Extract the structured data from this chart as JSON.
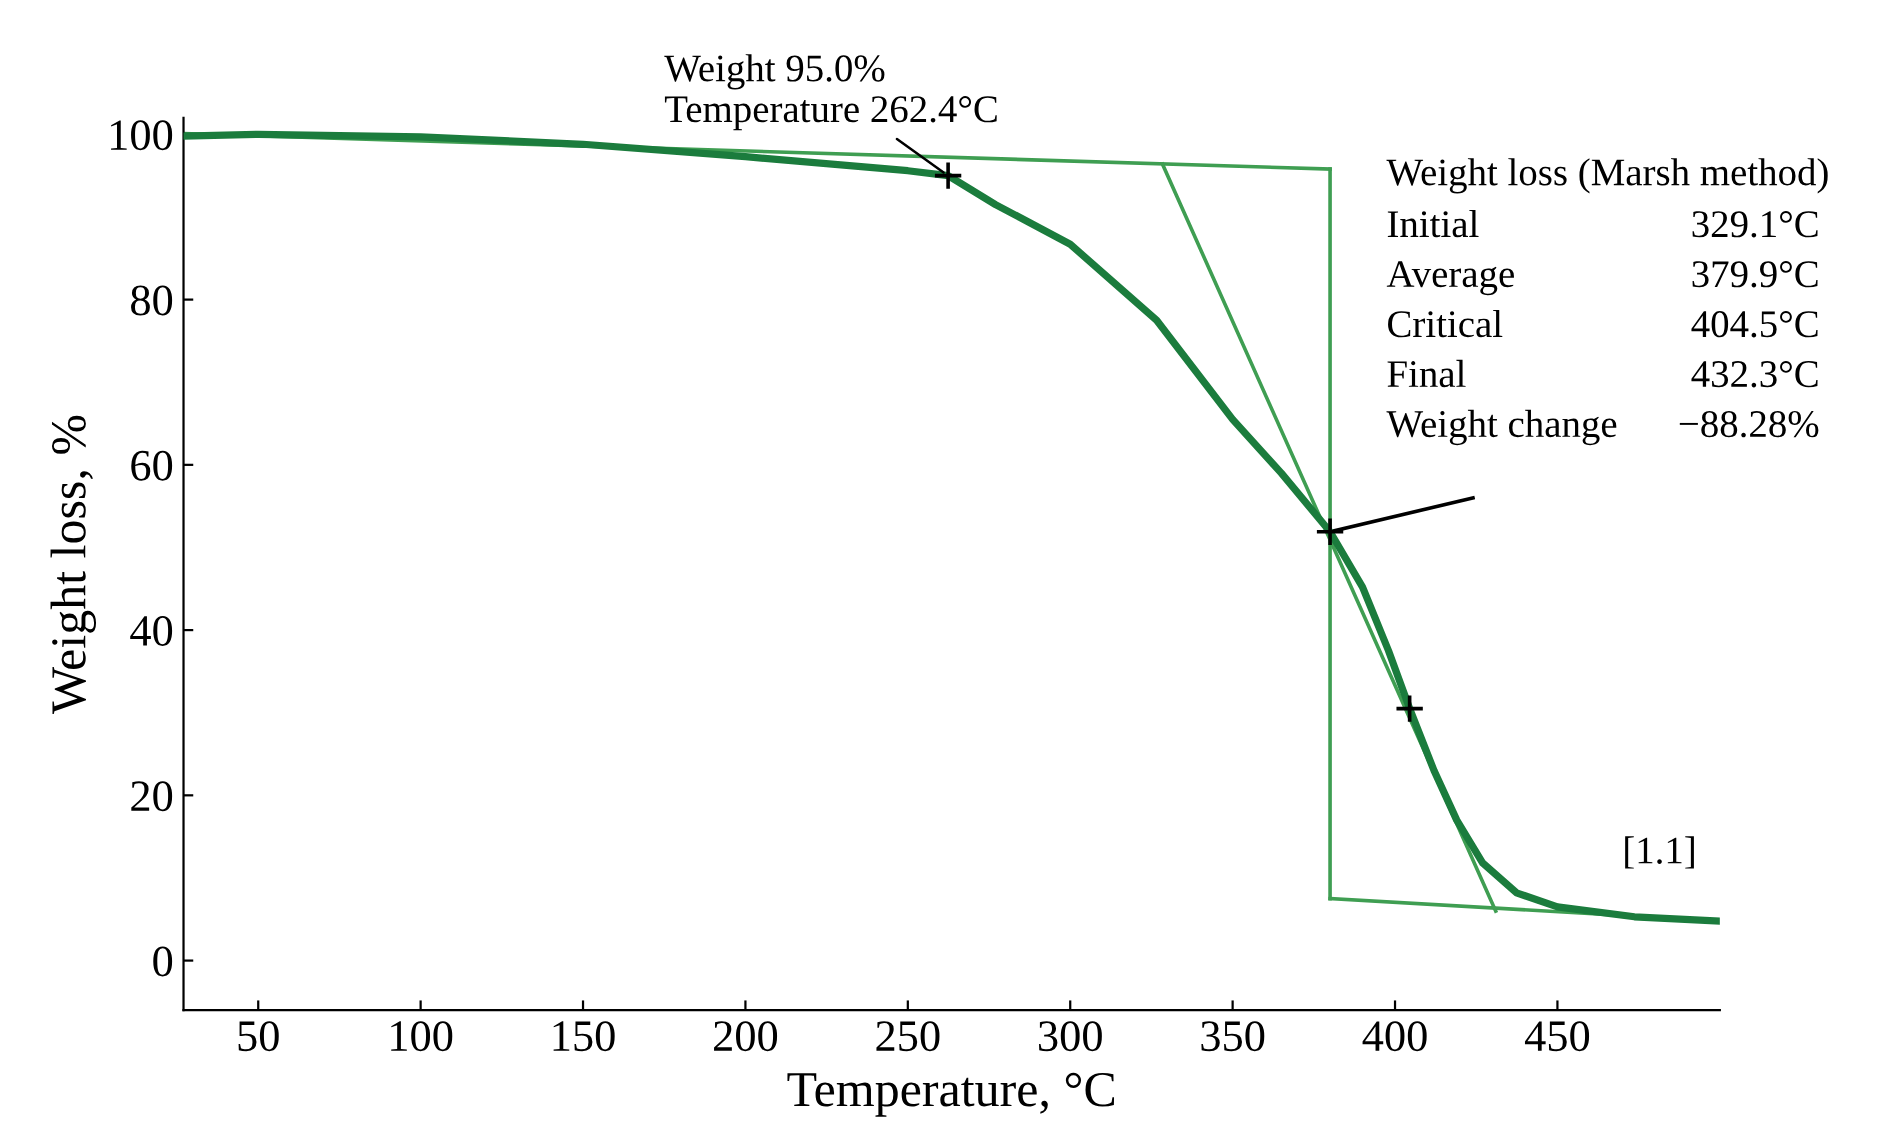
{
  "chart_data": {
    "type": "line",
    "xlabel": "Temperature, °C",
    "ylabel": "Weight loss, %",
    "xlim": [
      27,
      500
    ],
    "ylim": [
      -6,
      102
    ],
    "xticks": [
      50,
      100,
      150,
      200,
      250,
      300,
      350,
      400,
      450
    ],
    "yticks": [
      0,
      20,
      40,
      60,
      80,
      100
    ],
    "grid": false,
    "legend": false,
    "series": [
      {
        "color": "#1b7c3d",
        "x": [
          27,
          50,
          100,
          150,
          200,
          250,
          262.4,
          277,
          300,
          326.6,
          350,
          365,
          380,
          390,
          398,
          404.5,
          412,
          419,
          427,
          437.4,
          450,
          473.7,
          499
        ],
        "values": [
          99.8,
          100,
          99.7,
          98.8,
          97.3,
          95.6,
          95.0,
          91.5,
          86.7,
          77.5,
          65.5,
          59.0,
          51.9,
          45.2,
          37.5,
          30.5,
          23.0,
          17.0,
          11.8,
          8.2,
          6.5,
          5.3,
          4.8
        ]
      },
      {
        "color": "#3f9e52",
        "x": [
          27,
          380
        ],
        "values": [
          100.1,
          95.8
        ]
      },
      {
        "color": "#3f9e52",
        "x": [
          380,
          499
        ],
        "values": [
          7.5,
          4.8
        ]
      },
      {
        "color": "#3f9e52",
        "x": [
          328.4,
          431
        ],
        "values": [
          96.4,
          6.0
        ]
      },
      {
        "color": "#3f9e52",
        "x": [
          380,
          380
        ],
        "values": [
          95.8,
          7.5
        ]
      },
      {
        "color": "#000000",
        "x": [
          380,
          424
        ],
        "values": [
          51.9,
          56
        ]
      },
      {
        "type": "scatter",
        "color": "#000000",
        "marker": "cross",
        "x": [
          262.4,
          380,
          404.5
        ],
        "values": [
          95.0,
          51.9,
          30.5
        ]
      }
    ],
    "annotations": [
      {
        "text": "Weight 95.0%\nTemperature 262.4°C",
        "x": 262.4,
        "y": 95.0
      },
      "Weight loss (Marsh method)",
      "Initial",
      "329.1°C",
      "Average",
      "379.9°C",
      "Critical",
      "404.5°C",
      "Final",
      "432.3°C",
      "Weight change",
      "−88.28%",
      "[1.1]"
    ]
  }
}
